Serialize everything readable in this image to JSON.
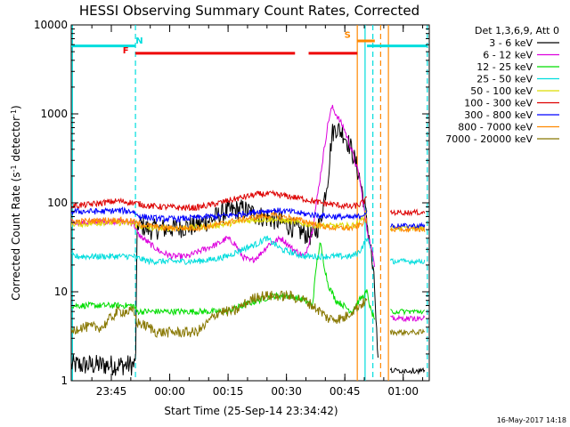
{
  "chart_data": {
    "type": "line",
    "title": "HESSI Observing Summary Count Rates, Corrected",
    "xlabel": "Start Time (25-Sep-14 23:34:42)",
    "ylabel_main": "Corrected Count Rate (s",
    "ylabel_sup1": "-1",
    "ylabel_mid": " detector",
    "ylabel_sup2": "-1",
    "ylabel_end": ")",
    "yscale": "log",
    "ylim": [
      1,
      10000
    ],
    "xlim_minutes": [
      0,
      92
    ],
    "x_ticks": [
      {
        "minute": 10.3,
        "label": "23:45"
      },
      {
        "minute": 25.3,
        "label": "00:00"
      },
      {
        "minute": 40.3,
        "label": "00:15"
      },
      {
        "minute": 55.3,
        "label": "00:30"
      },
      {
        "minute": 70.3,
        "label": "00:45"
      },
      {
        "minute": 85.3,
        "label": "01:00"
      }
    ],
    "y_ticks": [
      {
        "value": 1,
        "label": "1"
      },
      {
        "value": 10,
        "label": "10"
      },
      {
        "value": 100,
        "label": "100"
      },
      {
        "value": 1000,
        "label": "1000"
      },
      {
        "value": 10000,
        "label": "10000"
      }
    ],
    "legend_header": "Det 1,3,6,9, Att 0",
    "legend_position": "right",
    "series": [
      {
        "name": "3 - 6 keV",
        "color": "#000000",
        "points": [
          [
            0,
            1.5
          ],
          [
            16.5,
            1.5
          ],
          [
            17,
            60
          ],
          [
            20,
            50
          ],
          [
            26,
            52
          ],
          [
            32,
            55
          ],
          [
            36,
            65
          ],
          [
            40,
            80
          ],
          [
            44,
            85
          ],
          [
            48,
            72
          ],
          [
            52,
            65
          ],
          [
            55,
            58
          ],
          [
            58,
            50
          ],
          [
            60,
            45
          ],
          [
            62,
            42
          ],
          [
            64,
            60
          ],
          [
            66,
            200
          ],
          [
            67,
            600
          ],
          [
            68,
            700
          ],
          [
            70,
            600
          ],
          [
            72,
            400
          ],
          [
            74,
            200
          ],
          [
            75,
            120
          ],
          [
            76,
            60
          ],
          [
            77,
            30
          ],
          [
            78,
            10
          ],
          [
            79,
            1
          ]
        ]
      },
      {
        "name": "6 - 12 keV",
        "color": "#dd00dd",
        "points": [
          [
            0,
            60
          ],
          [
            4,
            60
          ],
          [
            8,
            62
          ],
          [
            12,
            62
          ],
          [
            16,
            60
          ],
          [
            17,
            45
          ],
          [
            20,
            35
          ],
          [
            23,
            28
          ],
          [
            26,
            25
          ],
          [
            30,
            25
          ],
          [
            34,
            30
          ],
          [
            38,
            35
          ],
          [
            40,
            40
          ],
          [
            42,
            35
          ],
          [
            44,
            25
          ],
          [
            46,
            22
          ],
          [
            48,
            25
          ],
          [
            51,
            35
          ],
          [
            54,
            40
          ],
          [
            57,
            30
          ],
          [
            60,
            25
          ],
          [
            62,
            50
          ],
          [
            64,
            200
          ],
          [
            66,
            800
          ],
          [
            67,
            1200
          ],
          [
            68,
            1000
          ],
          [
            70,
            700
          ],
          [
            72,
            400
          ],
          [
            74,
            200
          ],
          [
            75,
            100
          ],
          [
            76,
            50
          ],
          [
            78,
            20
          ]
        ]
      },
      {
        "name": "12 - 25 keV",
        "color": "#00dd00",
        "points": [
          [
            0,
            7
          ],
          [
            4,
            7
          ],
          [
            8,
            7
          ],
          [
            12,
            7
          ],
          [
            16,
            7
          ],
          [
            17,
            6
          ],
          [
            20,
            6
          ],
          [
            24,
            6
          ],
          [
            28,
            6
          ],
          [
            32,
            6
          ],
          [
            36,
            6
          ],
          [
            40,
            6
          ],
          [
            44,
            7
          ],
          [
            48,
            8
          ],
          [
            52,
            9
          ],
          [
            56,
            9
          ],
          [
            60,
            8
          ],
          [
            62,
            7
          ],
          [
            63,
            20
          ],
          [
            64,
            35
          ],
          [
            65,
            20
          ],
          [
            66,
            12
          ],
          [
            68,
            8
          ],
          [
            70,
            7
          ],
          [
            72,
            6
          ],
          [
            74,
            8
          ],
          [
            76,
            10
          ],
          [
            77,
            6
          ],
          [
            78,
            5
          ]
        ]
      },
      {
        "name": "25 - 50 keV",
        "color": "#00dddd",
        "points": [
          [
            0,
            25
          ],
          [
            4,
            25
          ],
          [
            8,
            25
          ],
          [
            12,
            25
          ],
          [
            16,
            25
          ],
          [
            17,
            24
          ],
          [
            20,
            22
          ],
          [
            24,
            22
          ],
          [
            28,
            22
          ],
          [
            32,
            22
          ],
          [
            36,
            23
          ],
          [
            40,
            25
          ],
          [
            44,
            30
          ],
          [
            48,
            35
          ],
          [
            50,
            40
          ],
          [
            52,
            35
          ],
          [
            54,
            30
          ],
          [
            56,
            28
          ],
          [
            60,
            25
          ],
          [
            64,
            25
          ],
          [
            68,
            25
          ],
          [
            72,
            25
          ],
          [
            74,
            28
          ],
          [
            76,
            40
          ],
          [
            77,
            30
          ]
        ]
      },
      {
        "name": "50 - 100 keV",
        "color": "#dddd00",
        "points": [
          [
            0,
            58
          ],
          [
            4,
            58
          ],
          [
            8,
            60
          ],
          [
            12,
            60
          ],
          [
            16,
            58
          ],
          [
            17,
            55
          ],
          [
            20,
            52
          ],
          [
            24,
            52
          ],
          [
            28,
            52
          ],
          [
            32,
            53
          ],
          [
            36,
            55
          ],
          [
            40,
            58
          ],
          [
            44,
            62
          ],
          [
            48,
            65
          ],
          [
            52,
            65
          ],
          [
            56,
            62
          ],
          [
            60,
            58
          ],
          [
            64,
            55
          ],
          [
            68,
            55
          ],
          [
            72,
            55
          ],
          [
            74,
            60
          ],
          [
            76,
            80
          ]
        ]
      },
      {
        "name": "100 - 300 keV",
        "color": "#dd0000",
        "points": [
          [
            0,
            92
          ],
          [
            4,
            95
          ],
          [
            8,
            100
          ],
          [
            12,
            105
          ],
          [
            16,
            100
          ],
          [
            17,
            98
          ],
          [
            20,
            92
          ],
          [
            24,
            90
          ],
          [
            28,
            88
          ],
          [
            32,
            88
          ],
          [
            36,
            95
          ],
          [
            40,
            105
          ],
          [
            44,
            115
          ],
          [
            48,
            125
          ],
          [
            52,
            125
          ],
          [
            56,
            118
          ],
          [
            60,
            110
          ],
          [
            64,
            100
          ],
          [
            68,
            95
          ],
          [
            72,
            90
          ],
          [
            74,
            95
          ],
          [
            76,
            110
          ]
        ]
      },
      {
        "name": "300 - 800 keV",
        "color": "#0000ff",
        "points": [
          [
            0,
            80
          ],
          [
            4,
            80
          ],
          [
            8,
            80
          ],
          [
            12,
            82
          ],
          [
            16,
            80
          ],
          [
            17,
            72
          ],
          [
            20,
            68
          ],
          [
            24,
            66
          ],
          [
            28,
            66
          ],
          [
            32,
            68
          ],
          [
            36,
            70
          ],
          [
            40,
            72
          ],
          [
            44,
            75
          ],
          [
            48,
            80
          ],
          [
            52,
            82
          ],
          [
            56,
            80
          ],
          [
            60,
            75
          ],
          [
            64,
            72
          ],
          [
            68,
            70
          ],
          [
            72,
            68
          ],
          [
            74,
            70
          ],
          [
            76,
            80
          ]
        ]
      },
      {
        "name": "800 - 7000 keV",
        "color": "#ff8800",
        "points": [
          [
            0,
            62
          ],
          [
            4,
            62
          ],
          [
            8,
            64
          ],
          [
            12,
            64
          ],
          [
            16,
            62
          ],
          [
            17,
            58
          ],
          [
            20,
            55
          ],
          [
            24,
            52
          ],
          [
            28,
            52
          ],
          [
            32,
            52
          ],
          [
            36,
            55
          ],
          [
            40,
            60
          ],
          [
            44,
            65
          ],
          [
            48,
            70
          ],
          [
            52,
            72
          ],
          [
            56,
            68
          ],
          [
            60,
            62
          ],
          [
            64,
            55
          ],
          [
            68,
            52
          ],
          [
            72,
            52
          ],
          [
            74,
            56
          ],
          [
            76,
            65
          ]
        ]
      },
      {
        "name": "7000 - 20000 keV",
        "color": "#887700",
        "points": [
          [
            0,
            3.5
          ],
          [
            2,
            4
          ],
          [
            4,
            4
          ],
          [
            6,
            4
          ],
          [
            8,
            4
          ],
          [
            10,
            5
          ],
          [
            12,
            6
          ],
          [
            14,
            6
          ],
          [
            16,
            6
          ],
          [
            17,
            4.5
          ],
          [
            20,
            4
          ],
          [
            22,
            3.5
          ],
          [
            24,
            3.5
          ],
          [
            26,
            3.5
          ],
          [
            28,
            3.5
          ],
          [
            30,
            3.5
          ],
          [
            32,
            3.5
          ],
          [
            34,
            4
          ],
          [
            36,
            5
          ],
          [
            38,
            6
          ],
          [
            40,
            6
          ],
          [
            42,
            6
          ],
          [
            44,
            7
          ],
          [
            46,
            8
          ],
          [
            48,
            9
          ],
          [
            50,
            9
          ],
          [
            52,
            9
          ],
          [
            54,
            9
          ],
          [
            56,
            9
          ],
          [
            58,
            8.5
          ],
          [
            60,
            8
          ],
          [
            62,
            7
          ],
          [
            64,
            6
          ],
          [
            66,
            5
          ],
          [
            68,
            5
          ],
          [
            70,
            5
          ],
          [
            72,
            6
          ],
          [
            74,
            7
          ],
          [
            76,
            8
          ]
        ]
      }
    ],
    "post_gap_series": [
      {
        "name": "3 - 6 keV",
        "color": "#000000",
        "y": [
          1.3
        ]
      },
      {
        "name": "6 - 12 keV",
        "color": "#dd00dd",
        "y": [
          5
        ]
      },
      {
        "name": "12 - 25 keV",
        "color": "#00dd00",
        "y": [
          6
        ]
      },
      {
        "name": "25 - 50 keV",
        "color": "#00dddd",
        "y": [
          22
        ]
      },
      {
        "name": "50 - 100 keV",
        "color": "#dddd00",
        "y": [
          52
        ]
      },
      {
        "name": "100 - 300 keV",
        "color": "#dd0000",
        "y": [
          78
        ]
      },
      {
        "name": "300 - 800 keV",
        "color": "#0000ff",
        "y": [
          55
        ]
      },
      {
        "name": "800 - 7000 keV",
        "color": "#ff8800",
        "y": [
          50
        ]
      },
      {
        "name": "7000 - 20000 keV",
        "color": "#887700",
        "y": [
          3.5
        ]
      }
    ],
    "post_gap_range_minutes": [
      82,
      91
    ],
    "status_bars": [
      {
        "label": "N",
        "color": "#00dddd",
        "value": 5800,
        "start": 0,
        "end": 16.5
      },
      {
        "label": "N",
        "color": "#00dddd",
        "value": 5800,
        "start": 76,
        "end": 91.5
      },
      {
        "label": "F",
        "color": "#ee0000",
        "value": 4800,
        "start": 16.5,
        "end": 57.5
      },
      {
        "label": "F",
        "color": "#ee0000",
        "value": 4800,
        "start": 61,
        "end": 73.5
      },
      {
        "label": "S",
        "color": "#ff8800",
        "value": 6600,
        "start": 73.5,
        "end": 78
      }
    ],
    "status_labels": [
      {
        "text": "N",
        "color": "#00dddd",
        "minute": 17.5,
        "value": 6200
      },
      {
        "text": "F",
        "color": "#ee0000",
        "minute": 14,
        "value": 4800
      },
      {
        "text": "S",
        "color": "#ff8800",
        "minute": 71,
        "value": 7200
      }
    ],
    "vlines": [
      {
        "minute": 16.5,
        "color": "#00dddd",
        "style": "dash"
      },
      {
        "minute": 91.5,
        "color": "#00dddd",
        "style": "dash"
      },
      {
        "minute": 0.3,
        "color": "#00dddd",
        "style": "solid"
      },
      {
        "minute": 73.5,
        "color": "#ff8800",
        "style": "solid"
      },
      {
        "minute": 75.5,
        "color": "#00dddd",
        "style": "solid"
      },
      {
        "minute": 77.5,
        "color": "#00dddd",
        "style": "dash"
      },
      {
        "minute": 79.5,
        "color": "#ff8800",
        "style": "dash"
      },
      {
        "minute": 81.5,
        "color": "#ff8800",
        "style": "solid"
      }
    ],
    "footer": "16-May-2017 14:18"
  }
}
